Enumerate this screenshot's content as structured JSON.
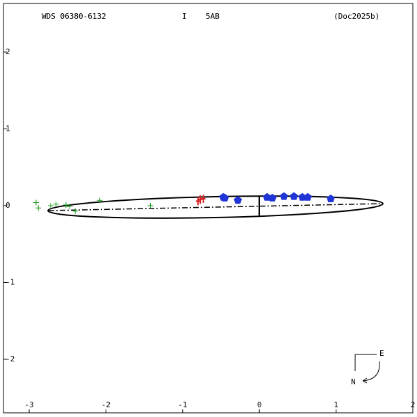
{
  "chart_data": {
    "type": "scatter",
    "header": [
      "WDS 06380-6132",
      "I",
      "5AB",
      "(Doc2025b)"
    ],
    "xlim": [
      -3.335,
      2.0
    ],
    "ylim": [
      -2.697,
      2.633
    ],
    "xticks": [
      -3,
      -2,
      -1,
      0,
      1,
      2
    ],
    "yticks": [
      -2,
      -1,
      0,
      1,
      2
    ],
    "compass": [
      "E",
      "N"
    ],
    "series": [
      {
        "marker": "pentagon",
        "color": "#1f35d6",
        "x": [
          -0.47,
          -0.45,
          -0.28,
          0.1,
          0.17,
          0.32,
          0.45,
          0.56,
          0.63,
          0.93
        ],
        "values": [
          0.11,
          0.1,
          0.07,
          0.11,
          0.1,
          0.12,
          0.12,
          0.11,
          0.11,
          0.09
        ]
      },
      {
        "marker": "bar",
        "color": "#d42020",
        "x": [
          -0.8,
          -0.77,
          -0.73
        ],
        "values": [
          0.06,
          0.08,
          0.09
        ]
      },
      {
        "marker": "plus",
        "color": "#1a9a1a",
        "x": [
          -2.91,
          -2.88,
          -2.72,
          -2.65,
          -2.52,
          -2.47,
          -2.4,
          -2.08,
          -1.42
        ],
        "values": [
          0.04,
          -0.03,
          0.0,
          0.02,
          0.01,
          -0.01,
          -0.07,
          0.07,
          0.0
        ]
      }
    ]
  }
}
